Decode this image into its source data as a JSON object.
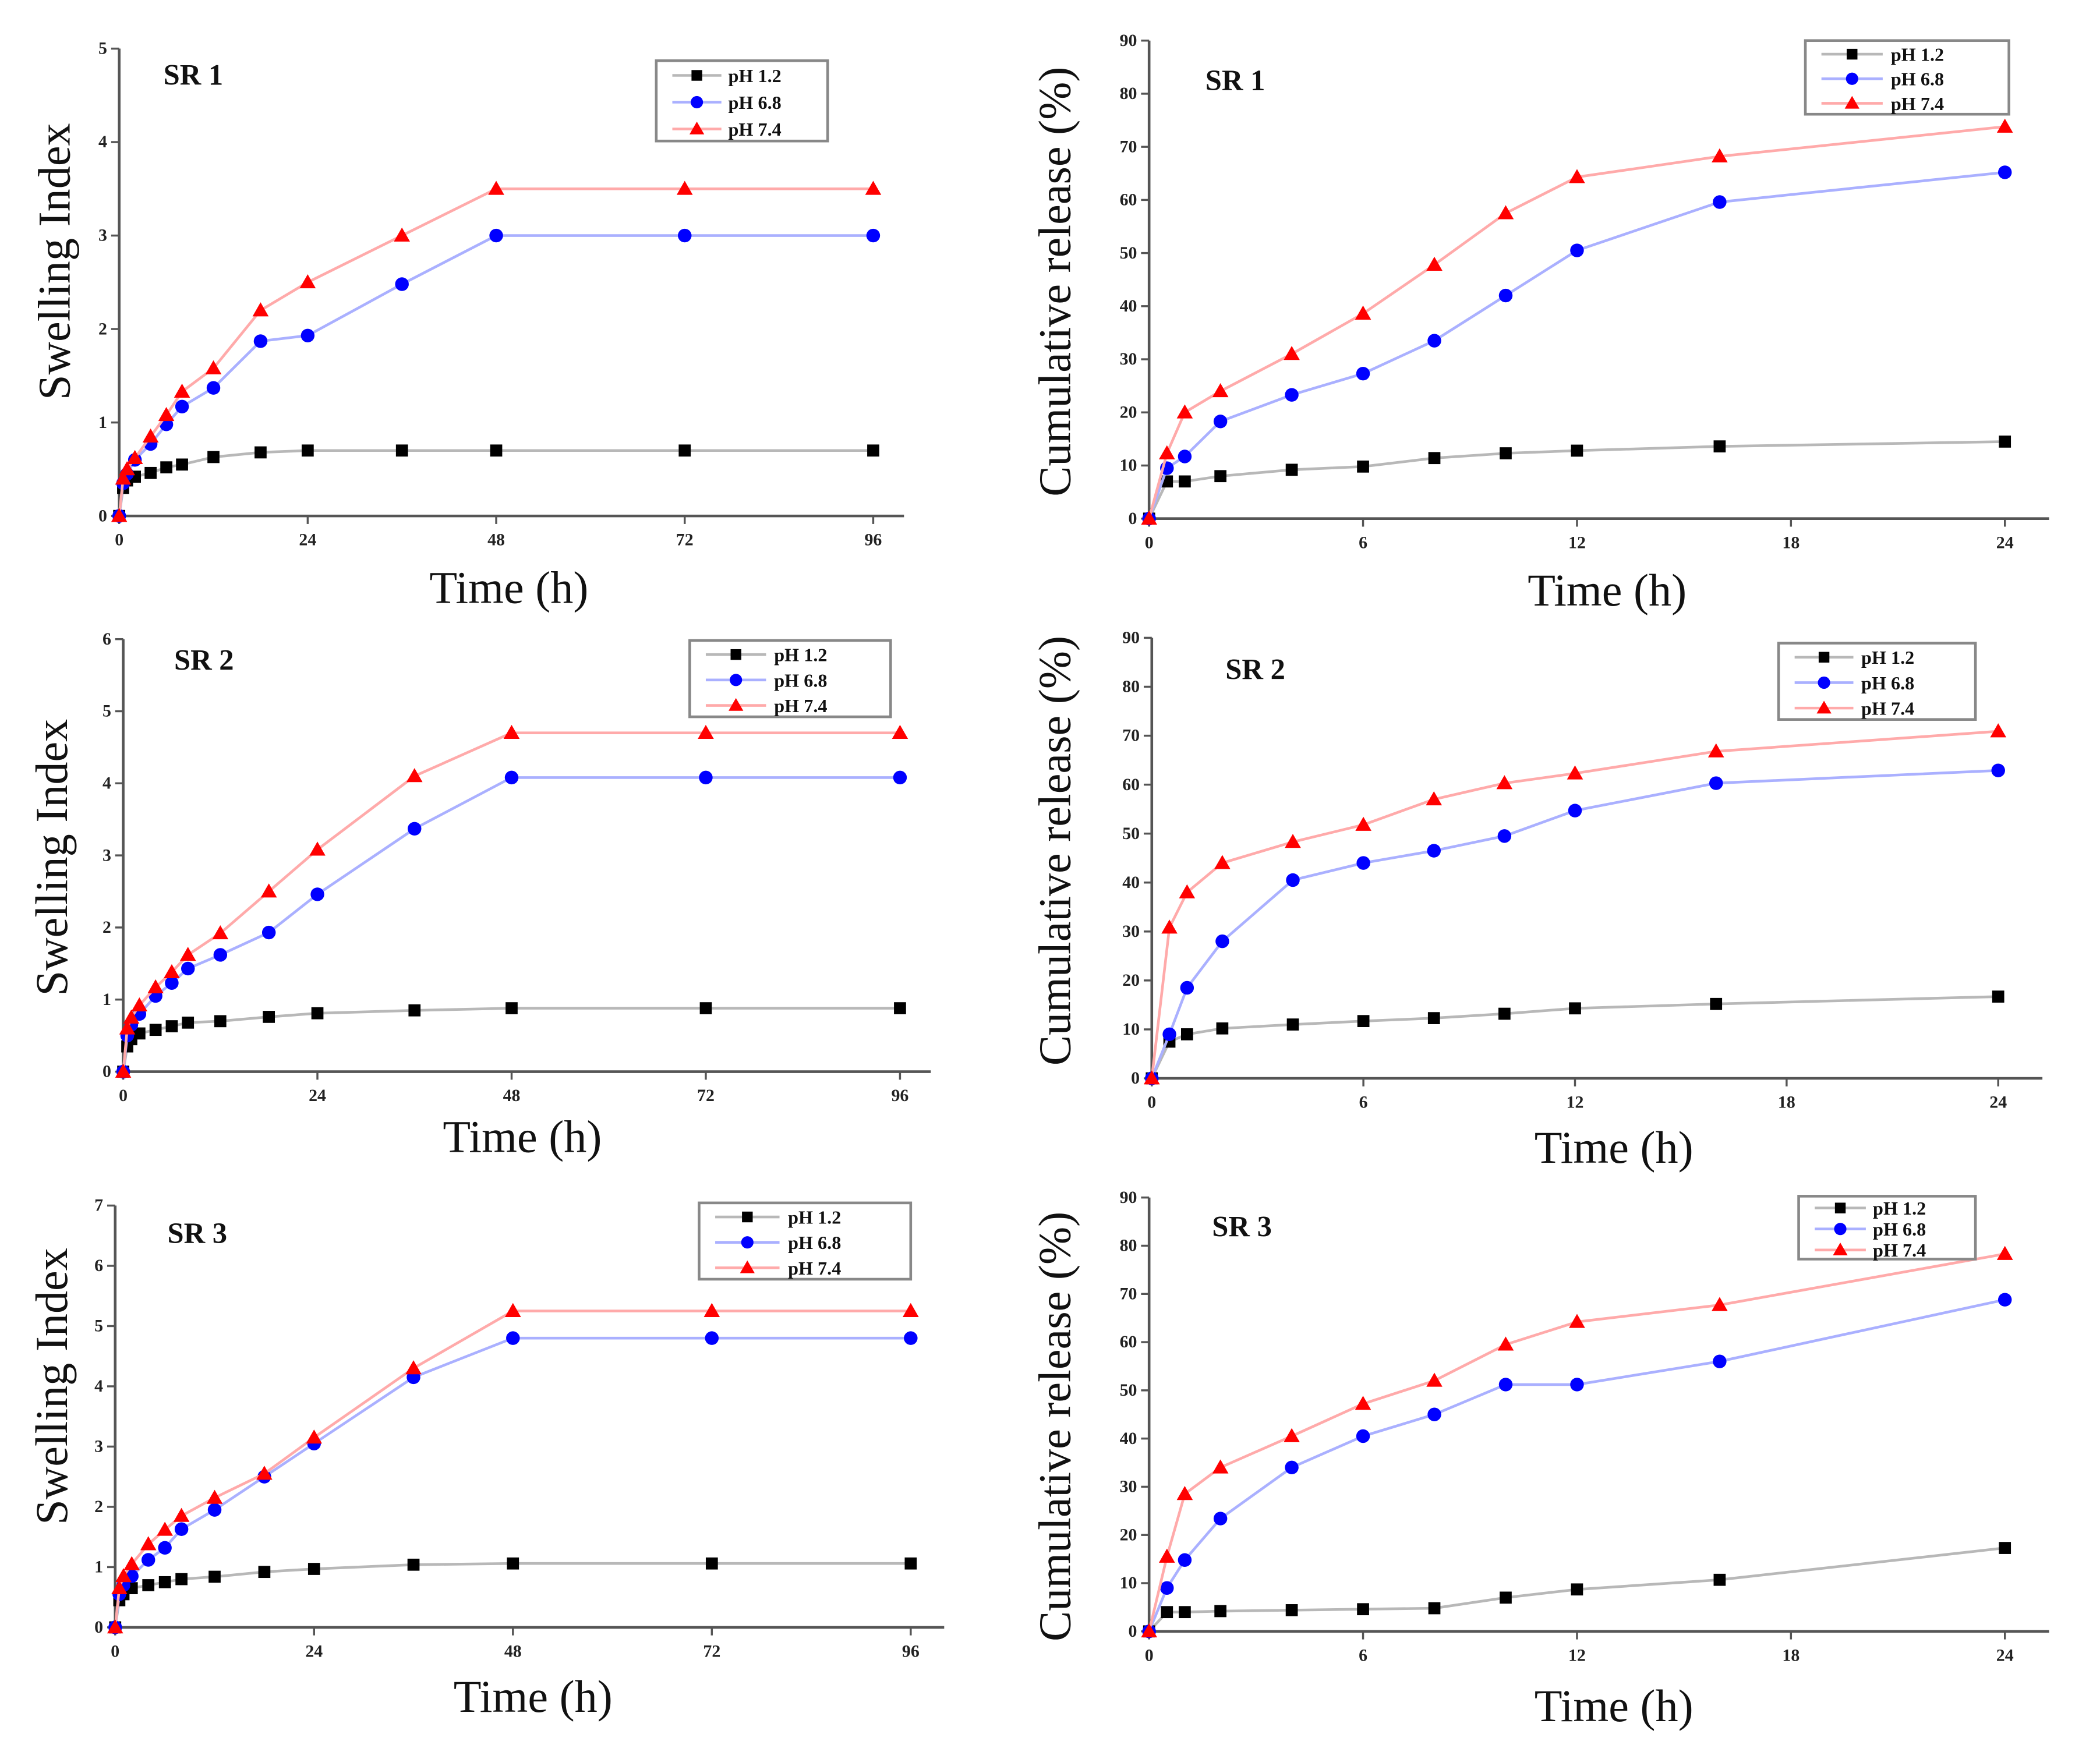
{
  "chart_data": [
    {
      "id": "swelling-sr1",
      "type": "line",
      "title": "SR 1",
      "xlabel": "Time (h)",
      "ylabel": "Swelling Index",
      "xlim": [
        0,
        96
      ],
      "ylim": [
        0,
        5
      ],
      "xticks": [
        0,
        24,
        48,
        72,
        96
      ],
      "yticks": [
        0,
        1,
        2,
        3,
        4,
        5
      ],
      "legend_position": "top-right",
      "grid": false,
      "x": [
        0,
        0.5,
        1,
        2,
        4,
        6,
        8,
        12,
        18,
        24,
        36,
        48,
        72,
        96
      ],
      "series": [
        {
          "name": "pH 1.2",
          "color": "#000000",
          "line_color": "#b8b8b8",
          "marker": "square",
          "values": [
            0,
            0.3,
            0.38,
            0.42,
            0.46,
            0.52,
            0.55,
            0.63,
            0.68,
            0.7,
            0.7,
            0.7,
            0.7,
            0.7
          ]
        },
        {
          "name": "pH 6.8",
          "color": "#0000ff",
          "line_color": "#aab0ff",
          "marker": "circle",
          "values": [
            0,
            0.35,
            0.45,
            0.6,
            0.77,
            0.98,
            1.17,
            1.37,
            1.87,
            1.93,
            2.48,
            3.0,
            3.0,
            3.0
          ]
        },
        {
          "name": "pH 7.4",
          "color": "#ff0000",
          "line_color": "#ffaaaa",
          "marker": "triangle",
          "values": [
            0,
            0.4,
            0.5,
            0.62,
            0.85,
            1.08,
            1.33,
            1.58,
            2.2,
            2.5,
            3.0,
            3.5,
            3.5,
            3.5
          ]
        }
      ]
    },
    {
      "id": "release-sr1",
      "type": "line",
      "title": "SR 1",
      "xlabel": "Time (h)",
      "ylabel": "Cumulative release (%)",
      "xlim": [
        0,
        24
      ],
      "ylim": [
        0,
        90
      ],
      "xticks": [
        0,
        6,
        12,
        18,
        24
      ],
      "yticks": [
        0,
        10,
        20,
        30,
        40,
        50,
        60,
        70,
        80,
        90
      ],
      "legend_position": "top-right",
      "grid": false,
      "x": [
        0,
        0.5,
        1,
        2,
        4,
        6,
        8,
        10,
        12,
        16,
        24
      ],
      "series": [
        {
          "name": "pH 1.2",
          "color": "#000000",
          "line_color": "#b8b8b8",
          "marker": "square",
          "values": [
            0,
            7,
            7,
            8,
            9.2,
            9.8,
            11.4,
            12.3,
            12.8,
            13.6,
            14.5
          ]
        },
        {
          "name": "pH 6.8",
          "color": "#0000ff",
          "line_color": "#aab0ff",
          "marker": "circle",
          "values": [
            0,
            9.5,
            11.7,
            18.3,
            23.3,
            27.3,
            33.5,
            42,
            50.5,
            59.6,
            65.2
          ]
        },
        {
          "name": "pH 7.4",
          "color": "#ff0000",
          "line_color": "#ffaaaa",
          "marker": "triangle",
          "values": [
            0,
            12.3,
            20,
            24,
            31,
            38.6,
            47.8,
            57.5,
            64.3,
            68.2,
            73.8
          ]
        }
      ]
    },
    {
      "id": "swelling-sr2",
      "type": "line",
      "title": "SR 2",
      "xlabel": "Time (h)",
      "ylabel": "Swelling Index",
      "xlim": [
        0,
        96
      ],
      "ylim": [
        0,
        6
      ],
      "xticks": [
        0,
        24,
        48,
        72,
        96
      ],
      "yticks": [
        0,
        1,
        2,
        3,
        4,
        5,
        6
      ],
      "legend_position": "top-right",
      "grid": false,
      "x": [
        0,
        0.5,
        1,
        2,
        4,
        6,
        8,
        12,
        18,
        24,
        36,
        48,
        72,
        96
      ],
      "series": [
        {
          "name": "pH 1.2",
          "color": "#000000",
          "line_color": "#b8b8b8",
          "marker": "square",
          "values": [
            0,
            0.35,
            0.45,
            0.53,
            0.58,
            0.63,
            0.68,
            0.7,
            0.76,
            0.81,
            0.85,
            0.88,
            0.88,
            0.88
          ]
        },
        {
          "name": "pH 6.8",
          "color": "#0000ff",
          "line_color": "#aab0ff",
          "marker": "circle",
          "values": [
            0,
            0.5,
            0.65,
            0.8,
            1.05,
            1.23,
            1.43,
            1.62,
            1.93,
            2.46,
            3.37,
            4.08,
            4.08,
            4.08
          ]
        },
        {
          "name": "pH 7.4",
          "color": "#ff0000",
          "line_color": "#ffaaaa",
          "marker": "triangle",
          "values": [
            0,
            0.6,
            0.75,
            0.92,
            1.17,
            1.38,
            1.62,
            1.92,
            2.5,
            3.08,
            4.1,
            4.7,
            4.7,
            4.7
          ]
        }
      ]
    },
    {
      "id": "release-sr2",
      "type": "line",
      "title": "SR 2",
      "xlabel": "Time (h)",
      "ylabel": "Cumulative release (%)",
      "xlim": [
        0,
        24
      ],
      "ylim": [
        0,
        90
      ],
      "xticks": [
        0,
        6,
        12,
        18,
        24
      ],
      "yticks": [
        0,
        10,
        20,
        30,
        40,
        50,
        60,
        70,
        80,
        90
      ],
      "legend_position": "top-right",
      "grid": false,
      "x": [
        0,
        0.5,
        1,
        2,
        4,
        6,
        8,
        10,
        12,
        16,
        24
      ],
      "series": [
        {
          "name": "pH 1.2",
          "color": "#000000",
          "line_color": "#b8b8b8",
          "marker": "square",
          "values": [
            0,
            7.5,
            9,
            10.2,
            11,
            11.7,
            12.3,
            13.2,
            14.3,
            15.2,
            16.7
          ]
        },
        {
          "name": "pH 6.8",
          "color": "#0000ff",
          "line_color": "#aab0ff",
          "marker": "circle",
          "values": [
            0,
            9,
            18.5,
            28,
            40.5,
            44,
            46.5,
            49.5,
            54.7,
            60.3,
            62.9
          ]
        },
        {
          "name": "pH 7.4",
          "color": "#ff0000",
          "line_color": "#ffaaaa",
          "marker": "triangle",
          "values": [
            0,
            30.8,
            38,
            44,
            48.3,
            51.8,
            57,
            60.3,
            62.3,
            66.8,
            70.9
          ]
        }
      ]
    },
    {
      "id": "swelling-sr3",
      "type": "line",
      "title": "SR 3",
      "xlabel": "Time (h)",
      "ylabel": "Swelling Index",
      "xlim": [
        0,
        96
      ],
      "ylim": [
        0,
        7
      ],
      "xticks": [
        0,
        24,
        48,
        72,
        96
      ],
      "yticks": [
        0,
        1,
        2,
        3,
        4,
        5,
        6,
        7
      ],
      "legend_position": "top-right",
      "grid": false,
      "x": [
        0,
        0.5,
        1,
        2,
        4,
        6,
        8,
        12,
        18,
        24,
        36,
        48,
        72,
        96
      ],
      "series": [
        {
          "name": "pH 1.2",
          "color": "#000000",
          "line_color": "#b8b8b8",
          "marker": "square",
          "values": [
            0,
            0.45,
            0.55,
            0.65,
            0.7,
            0.75,
            0.8,
            0.84,
            0.92,
            0.97,
            1.04,
            1.06,
            1.06,
            1.06
          ]
        },
        {
          "name": "pH 6.8",
          "color": "#0000ff",
          "line_color": "#aab0ff",
          "marker": "circle",
          "values": [
            0,
            0.55,
            0.7,
            0.85,
            1.12,
            1.32,
            1.63,
            1.95,
            2.5,
            3.05,
            4.15,
            4.8,
            4.8,
            4.8
          ]
        },
        {
          "name": "pH 7.4",
          "color": "#ff0000",
          "line_color": "#ffaaaa",
          "marker": "triangle",
          "values": [
            0,
            0.65,
            0.85,
            1.05,
            1.38,
            1.62,
            1.85,
            2.15,
            2.55,
            3.15,
            4.3,
            5.25,
            5.25,
            5.25
          ]
        }
      ]
    },
    {
      "id": "release-sr3",
      "type": "line",
      "title": "SR 3",
      "xlabel": "Time (h)",
      "ylabel": "Cumulative release (%)",
      "xlim": [
        0,
        24
      ],
      "ylim": [
        0,
        90
      ],
      "xticks": [
        0,
        6,
        12,
        18,
        24
      ],
      "yticks": [
        0,
        10,
        20,
        30,
        40,
        50,
        60,
        70,
        80,
        90
      ],
      "legend_position": "top-right",
      "grid": false,
      "x": [
        0,
        0.5,
        1,
        2,
        4,
        6,
        8,
        10,
        12,
        16,
        24
      ],
      "series": [
        {
          "name": "pH 1.2",
          "color": "#000000",
          "line_color": "#b8b8b8",
          "marker": "square",
          "values": [
            0,
            4,
            4,
            4.2,
            4.4,
            4.6,
            4.8,
            7,
            8.7,
            10.7,
            17.3
          ]
        },
        {
          "name": "pH 6.8",
          "color": "#0000ff",
          "line_color": "#aab0ff",
          "marker": "circle",
          "values": [
            0,
            9,
            14.8,
            23.4,
            34,
            40.5,
            45,
            51.2,
            51.2,
            56,
            68.8
          ]
        },
        {
          "name": "pH 7.4",
          "color": "#ff0000",
          "line_color": "#ffaaaa",
          "marker": "triangle",
          "values": [
            0,
            15.5,
            28.5,
            34,
            40.5,
            47.2,
            52,
            59.5,
            64.2,
            67.7,
            78.3
          ]
        }
      ]
    }
  ]
}
